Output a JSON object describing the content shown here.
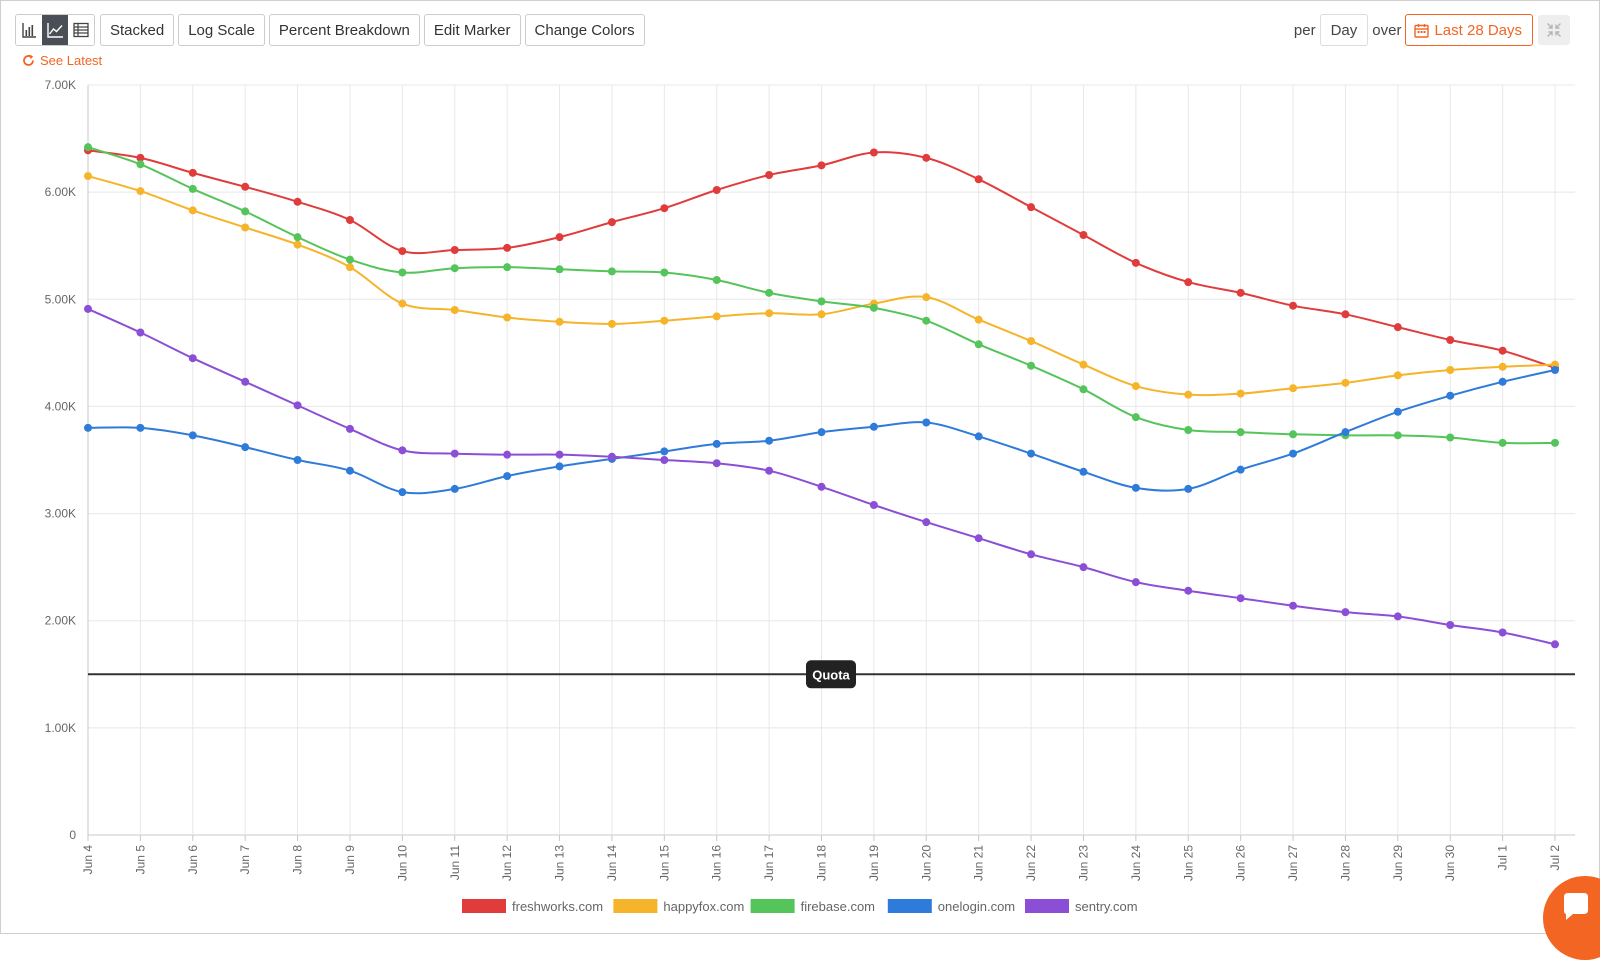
{
  "toolbar": {
    "view_icons": [
      {
        "name": "bar-chart-icon",
        "active": false
      },
      {
        "name": "line-chart-icon",
        "active": true
      },
      {
        "name": "table-icon",
        "active": false
      }
    ],
    "buttons": [
      "Stacked",
      "Log Scale",
      "Percent Breakdown",
      "Edit Marker",
      "Change Colors"
    ]
  },
  "controls": {
    "per_label": "per",
    "interval": "Day",
    "over_label": "over",
    "range": "Last 28 Days"
  },
  "see_latest": "See Latest",
  "accent_color": "#f26522",
  "chart_data": {
    "type": "line",
    "categories": [
      "Jun 4",
      "Jun 5",
      "Jun 6",
      "Jun 7",
      "Jun 8",
      "Jun 9",
      "Jun 10",
      "Jun 11",
      "Jun 12",
      "Jun 13",
      "Jun 14",
      "Jun 15",
      "Jun 16",
      "Jun 17",
      "Jun 18",
      "Jun 19",
      "Jun 20",
      "Jun 21",
      "Jun 22",
      "Jun 23",
      "Jun 24",
      "Jun 25",
      "Jun 26",
      "Jun 27",
      "Jun 28",
      "Jun 29",
      "Jun 30",
      "Jul 1",
      "Jul 2"
    ],
    "ylim": [
      0,
      7000
    ],
    "yticks": [
      0,
      1000,
      2000,
      3000,
      4000,
      5000,
      6000,
      7000
    ],
    "ytick_labels": [
      "0",
      "1.00K",
      "2.00K",
      "3.00K",
      "4.00K",
      "5.00K",
      "6.00K",
      "7.00K"
    ],
    "grid": true,
    "legend_position": "bottom",
    "series": [
      {
        "name": "freshworks.com",
        "color": "#e03c3c",
        "values": [
          6390,
          6320,
          6180,
          6050,
          5910,
          5740,
          5450,
          5460,
          5480,
          5580,
          5720,
          5850,
          6020,
          6160,
          6250,
          6370,
          6320,
          6120,
          5860,
          5600,
          5340,
          5160,
          5060,
          4940,
          4860,
          4740,
          4620,
          4520,
          4360
        ]
      },
      {
        "name": "happyfox.com",
        "color": "#f5b42a",
        "values": [
          6150,
          6010,
          5830,
          5670,
          5510,
          5300,
          4960,
          4900,
          4830,
          4790,
          4770,
          4800,
          4840,
          4870,
          4860,
          4960,
          5020,
          4810,
          4610,
          4390,
          4190,
          4110,
          4120,
          4170,
          4220,
          4290,
          4340,
          4370,
          4390
        ]
      },
      {
        "name": "firebase.com",
        "color": "#55c45b",
        "values": [
          6420,
          6260,
          6030,
          5820,
          5580,
          5370,
          5250,
          5290,
          5300,
          5280,
          5260,
          5250,
          5180,
          5060,
          4980,
          4920,
          4800,
          4580,
          4380,
          4160,
          3900,
          3780,
          3760,
          3740,
          3730,
          3730,
          3710,
          3660,
          3660
        ]
      },
      {
        "name": "onelogin.com",
        "color": "#2f7bd9",
        "values": [
          3800,
          3800,
          3730,
          3620,
          3500,
          3400,
          3200,
          3230,
          3350,
          3440,
          3510,
          3580,
          3650,
          3680,
          3760,
          3810,
          3850,
          3720,
          3560,
          3390,
          3240,
          3230,
          3410,
          3560,
          3760,
          3950,
          4100,
          4230,
          4340
        ]
      },
      {
        "name": "sentry.com",
        "color": "#8b4fd6",
        "values": [
          4910,
          4690,
          4450,
          4230,
          4010,
          3790,
          3590,
          3560,
          3550,
          3550,
          3530,
          3500,
          3470,
          3400,
          3250,
          3080,
          2920,
          2770,
          2620,
          2500,
          2360,
          2280,
          2210,
          2140,
          2080,
          2040,
          1960,
          1890,
          1780
        ]
      }
    ],
    "marker": {
      "label": "Quota",
      "value": 1500
    }
  }
}
